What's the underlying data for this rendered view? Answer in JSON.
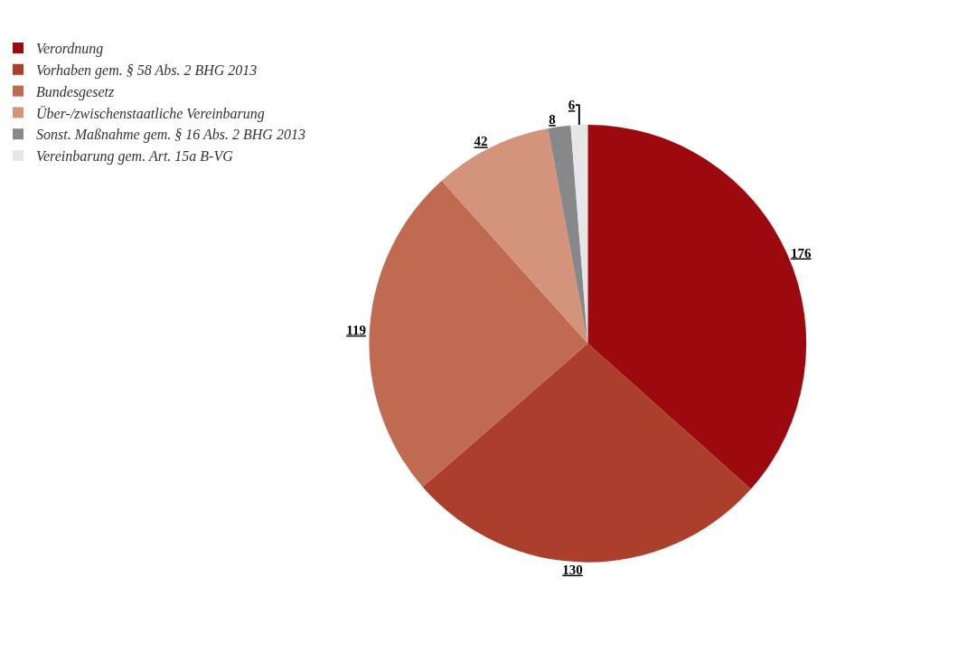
{
  "chart_data": {
    "type": "pie",
    "categories": [
      "Verordnung",
      "Vorhaben gem. § 58 Abs. 2 BHG 2013",
      "Bundesgesetz",
      "Über-/zwischenstaatliche Vereinbarung",
      "Sonst. Maßnahme gem. § 16 Abs. 2 BHG 2013",
      "Vereinbarung gem. Art. 15a B-VG"
    ],
    "values": [
      176,
      130,
      119,
      42,
      8,
      6
    ],
    "colors": [
      "#9c0a0f",
      "#ac3e2c",
      "#c06a52",
      "#d4937b",
      "#87888a",
      "#e6e6e6"
    ],
    "data_labels": true,
    "legend": "top left"
  }
}
